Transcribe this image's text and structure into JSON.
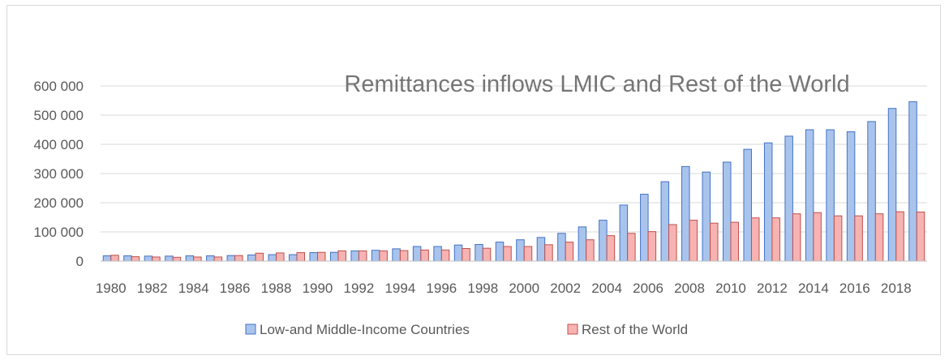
{
  "chart_data": {
    "type": "bar",
    "title": "Remittances inflows LMIC and Rest of the World",
    "xlabel": "",
    "ylabel": "",
    "ylim": [
      0,
      600000
    ],
    "yticks": [
      "0",
      "100 000",
      "200 000",
      "300 000",
      "400 000",
      "500 000",
      "600 000"
    ],
    "categories": [
      "1980",
      "1981",
      "1982",
      "1983",
      "1984",
      "1985",
      "1986",
      "1987",
      "1988",
      "1989",
      "1990",
      "1991",
      "1992",
      "1993",
      "1994",
      "1995",
      "1996",
      "1997",
      "1998",
      "1999",
      "2000",
      "2001",
      "2002",
      "2003",
      "2004",
      "2005",
      "2006",
      "2007",
      "2008",
      "2009",
      "2010",
      "2011",
      "2012",
      "2013",
      "2014",
      "2015",
      "2016",
      "2017",
      "2018",
      "2019"
    ],
    "xtick_labels": [
      "1980",
      "1982",
      "1984",
      "1986",
      "1988",
      "1990",
      "1992",
      "1994",
      "1996",
      "1998",
      "2000",
      "2002",
      "2004",
      "2006",
      "2008",
      "2010",
      "2012",
      "2014",
      "2016",
      "2018"
    ],
    "grid": true,
    "legend_position": "bottom",
    "series": [
      {
        "name": "Low-and Middle-Income Countries",
        "color": "#a9c4ec",
        "edge": "#4472c4",
        "values": [
          18000,
          18000,
          17000,
          17000,
          18000,
          18000,
          19000,
          21000,
          22000,
          22000,
          29000,
          30000,
          35000,
          37000,
          42000,
          50000,
          50000,
          55000,
          57000,
          65000,
          73000,
          81000,
          95000,
          117000,
          140000,
          192000,
          229000,
          272000,
          324000,
          305000,
          339000,
          383000,
          405000,
          428000,
          450000,
          450000,
          443000,
          478000,
          523000,
          546000
        ]
      },
      {
        "name": "Rest of the World",
        "color": "#f6b3b1",
        "edge": "#c0504d",
        "values": [
          20000,
          15000,
          14000,
          13000,
          14000,
          14000,
          19000,
          27000,
          28000,
          29000,
          30000,
          35000,
          35000,
          35000,
          36000,
          38000,
          38000,
          43000,
          44000,
          50000,
          50000,
          56000,
          65000,
          73000,
          87000,
          95000,
          101000,
          125000,
          140000,
          130000,
          133000,
          148000,
          148000,
          162000,
          166000,
          155000,
          155000,
          162000,
          169000,
          168000
        ]
      }
    ]
  }
}
